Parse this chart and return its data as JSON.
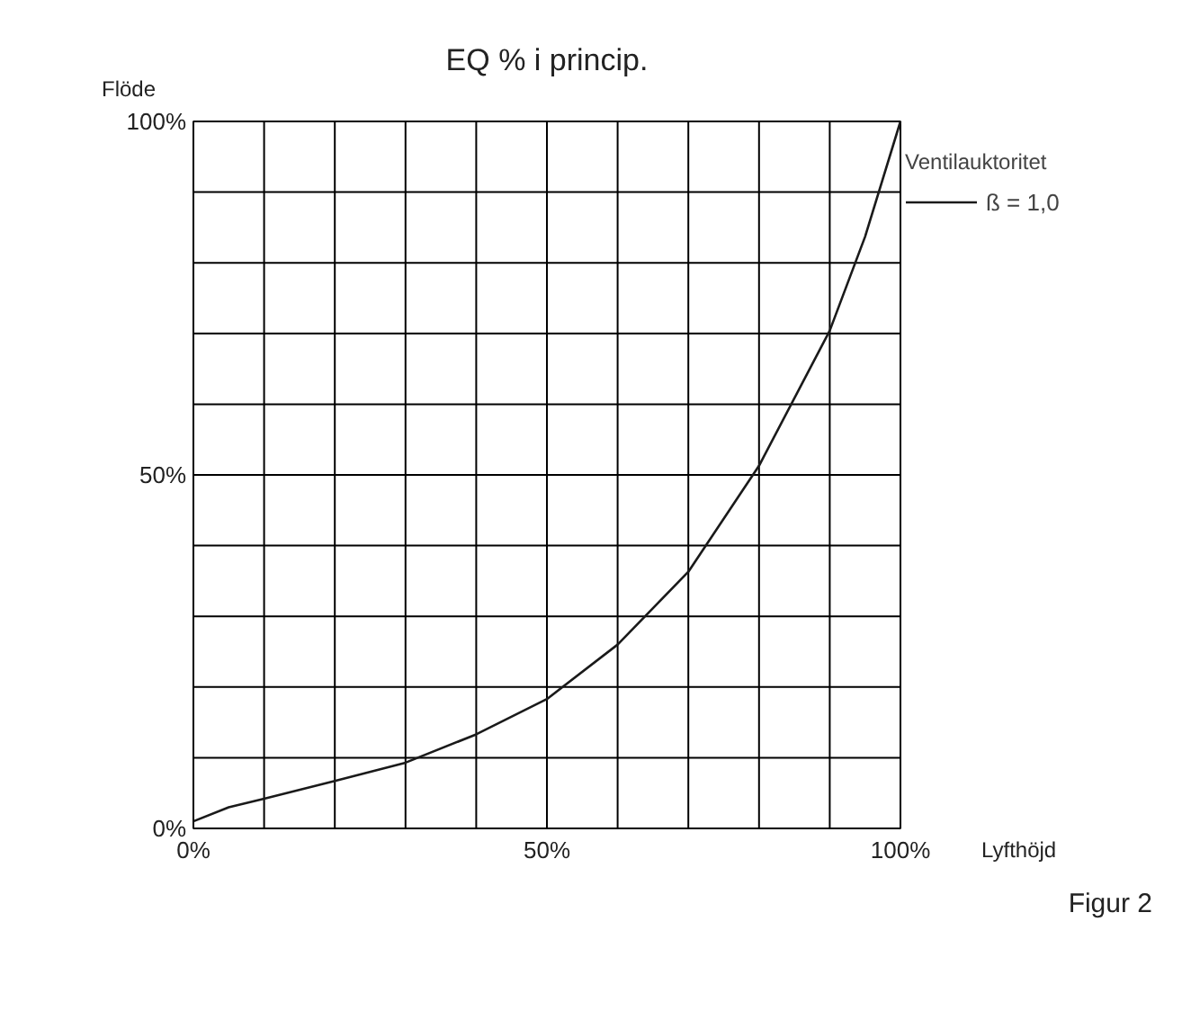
{
  "chart_data": {
    "type": "line",
    "title": "EQ % i princip.",
    "xlabel": "Lyfthöjd",
    "ylabel": "Flöde",
    "legend_title": "Ventilauktoritet",
    "x": [
      0,
      5,
      10,
      20,
      30,
      40,
      50,
      60,
      70,
      80,
      90,
      95,
      100
    ],
    "series": [
      {
        "name": "ß = 1,0",
        "color": "#1a1a1a",
        "values": [
          1,
          3,
          4.2,
          6.7,
          9.3,
          13.3,
          18.3,
          26,
          36.3,
          51.3,
          70.4,
          83.7,
          100
        ]
      }
    ],
    "xlim": [
      0,
      100
    ],
    "ylim": [
      0,
      100
    ],
    "xticks": [
      {
        "value": 0,
        "label": "0%"
      },
      {
        "value": 10,
        "label": null
      },
      {
        "value": 20,
        "label": null
      },
      {
        "value": 30,
        "label": null
      },
      {
        "value": 40,
        "label": null
      },
      {
        "value": 50,
        "label": "50%"
      },
      {
        "value": 60,
        "label": null
      },
      {
        "value": 70,
        "label": null
      },
      {
        "value": 80,
        "label": null
      },
      {
        "value": 90,
        "label": null
      },
      {
        "value": 100,
        "label": "100%"
      }
    ],
    "yticks": [
      {
        "value": 0,
        "label": "0%"
      },
      {
        "value": 10,
        "label": null
      },
      {
        "value": 20,
        "label": null
      },
      {
        "value": 30,
        "label": null
      },
      {
        "value": 40,
        "label": null
      },
      {
        "value": 50,
        "label": "50%"
      },
      {
        "value": 60,
        "label": null
      },
      {
        "value": 70,
        "label": null
      },
      {
        "value": 80,
        "label": null
      },
      {
        "value": 90,
        "label": null
      },
      {
        "value": 100,
        "label": "100%"
      }
    ],
    "grid": true,
    "legend": "top right",
    "marker": "none",
    "line_style": "solid",
    "annotations": [
      "Figur 2"
    ]
  }
}
